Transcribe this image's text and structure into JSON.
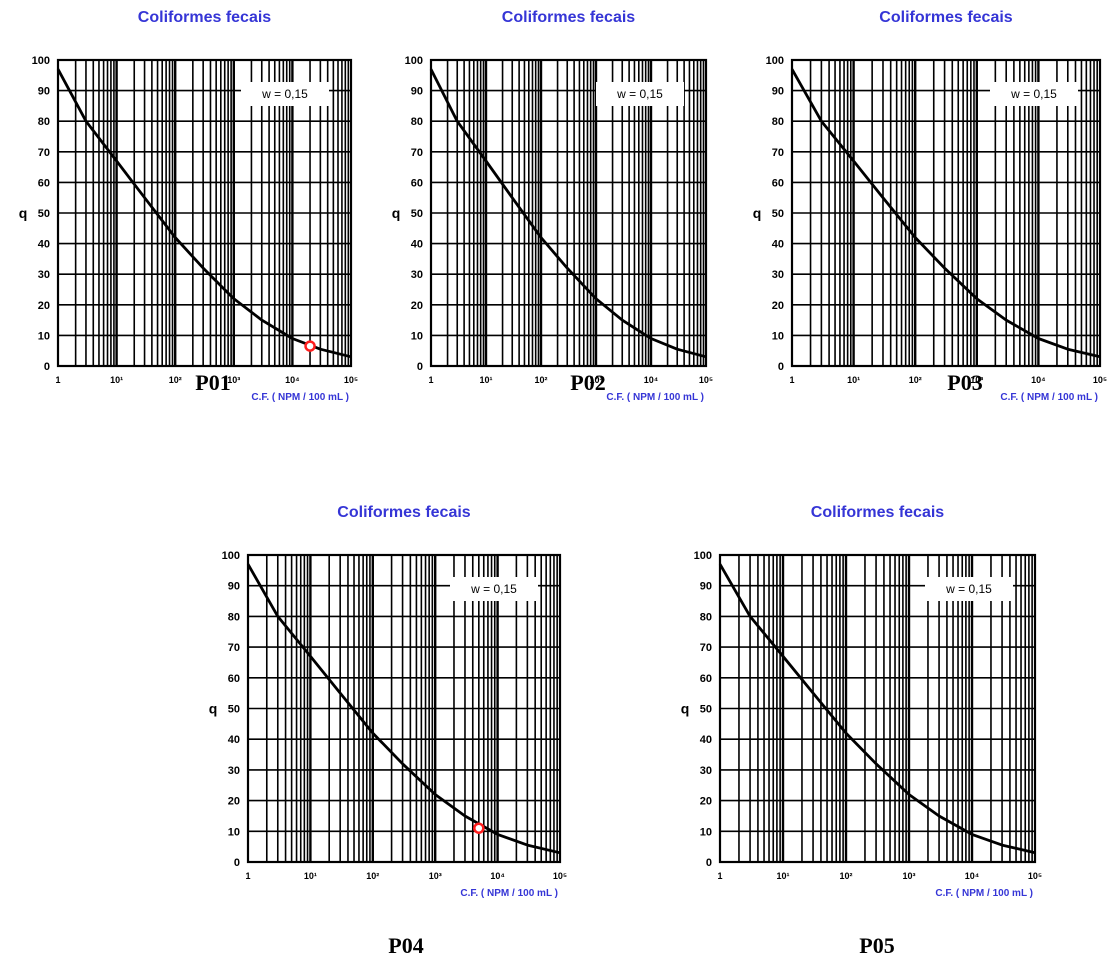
{
  "chart_data": [
    {
      "type": "line",
      "panel": "P01",
      "title": "Coliformes fecais",
      "ylabel": "q",
      "xlabel": "C.F. ( NPM / 100 mL )",
      "xscale": "log",
      "xlim": [
        1,
        100000
      ],
      "ylim": [
        0,
        100
      ],
      "grid": true,
      "weight_label": "w = 0,15",
      "x_tick_labels": [
        "1",
        "10¹",
        "10²",
        "10³",
        "10⁴",
        "10⁵"
      ],
      "y_tick_labels": [
        "0",
        "10",
        "20",
        "30",
        "40",
        "50",
        "60",
        "70",
        "80",
        "90",
        "100"
      ],
      "series": [
        {
          "x": [
            1,
            3,
            10,
            30,
            100,
            300,
            1000,
            3000,
            10000,
            30000,
            100000
          ],
          "y": [
            97,
            80,
            67,
            55,
            42,
            32,
            22,
            15,
            9,
            5.5,
            3
          ]
        }
      ],
      "marker": {
        "x": 20000,
        "y": 6.5,
        "color": "#ff1e1e"
      }
    },
    {
      "type": "line",
      "panel": "P02",
      "title": "Coliformes fecais",
      "ylabel": "q",
      "xlabel": "C.F. ( NPM / 100 mL )",
      "xscale": "log",
      "xlim": [
        1,
        100000
      ],
      "ylim": [
        0,
        100
      ],
      "grid": true,
      "weight_label": "w = 0,15",
      "x_tick_labels": [
        "1",
        "10¹",
        "10²",
        "10³",
        "10⁴",
        "10⁵"
      ],
      "y_tick_labels": [
        "0",
        "10",
        "20",
        "30",
        "40",
        "50",
        "60",
        "70",
        "80",
        "90",
        "100"
      ],
      "series": [
        {
          "x": [
            1,
            3,
            10,
            30,
            100,
            300,
            1000,
            3000,
            10000,
            30000,
            100000
          ],
          "y": [
            97,
            80,
            67,
            55,
            42,
            32,
            22,
            15,
            9,
            5.5,
            3
          ]
        }
      ]
    },
    {
      "type": "line",
      "panel": "P03",
      "title": "Coliformes fecais",
      "ylabel": "q",
      "xlabel": "C.F. ( NPM / 100 mL )",
      "xscale": "log",
      "xlim": [
        1,
        100000
      ],
      "ylim": [
        0,
        100
      ],
      "grid": true,
      "weight_label": "w = 0,15",
      "x_tick_labels": [
        "1",
        "10¹",
        "10²",
        "10³",
        "10⁴",
        "10⁵"
      ],
      "y_tick_labels": [
        "0",
        "10",
        "20",
        "30",
        "40",
        "50",
        "60",
        "70",
        "80",
        "90",
        "100"
      ],
      "series": [
        {
          "x": [
            1,
            3,
            10,
            30,
            100,
            300,
            1000,
            3000,
            10000,
            30000,
            100000
          ],
          "y": [
            97,
            80,
            67,
            55,
            42,
            32,
            22,
            15,
            9,
            5.5,
            3
          ]
        }
      ]
    },
    {
      "type": "line",
      "panel": "P04",
      "title": "Coliformes fecais",
      "ylabel": "q",
      "xlabel": "C.F. ( NPM / 100 mL )",
      "xscale": "log",
      "xlim": [
        1,
        100000
      ],
      "ylim": [
        0,
        100
      ],
      "grid": true,
      "weight_label": "w = 0,15",
      "x_tick_labels": [
        "1",
        "10¹",
        "10²",
        "10³",
        "10⁴",
        "10⁵"
      ],
      "y_tick_labels": [
        "0",
        "10",
        "20",
        "30",
        "40",
        "50",
        "60",
        "70",
        "80",
        "90",
        "100"
      ],
      "series": [
        {
          "x": [
            1,
            3,
            10,
            30,
            100,
            300,
            1000,
            3000,
            10000,
            30000,
            100000
          ],
          "y": [
            97,
            80,
            67,
            55,
            42,
            32,
            22,
            15,
            9,
            5.5,
            3
          ]
        }
      ],
      "marker": {
        "x": 5000,
        "y": 11,
        "color": "#ff1e1e"
      }
    },
    {
      "type": "line",
      "panel": "P05",
      "title": "Coliformes fecais",
      "ylabel": "q",
      "xlabel": "C.F. ( NPM / 100 mL )",
      "xscale": "log",
      "xlim": [
        1,
        100000
      ],
      "ylim": [
        0,
        100
      ],
      "grid": true,
      "weight_label": "w = 0,15",
      "x_tick_labels": [
        "1",
        "10¹",
        "10²",
        "10³",
        "10⁴",
        "10⁵"
      ],
      "y_tick_labels": [
        "0",
        "10",
        "20",
        "30",
        "40",
        "50",
        "60",
        "70",
        "80",
        "90",
        "100"
      ],
      "series": [
        {
          "x": [
            1,
            3,
            10,
            30,
            100,
            300,
            1000,
            3000,
            10000,
            30000,
            100000
          ],
          "y": [
            97,
            80,
            67,
            55,
            42,
            32,
            22,
            15,
            9,
            5.5,
            3
          ]
        }
      ]
    }
  ],
  "captions": [
    "P01",
    "P02",
    "P03",
    "P04",
    "P05"
  ]
}
